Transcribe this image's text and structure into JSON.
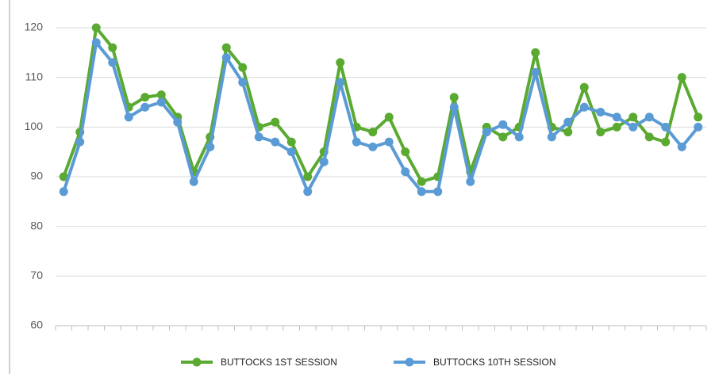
{
  "chart_data": {
    "type": "line",
    "categories": [
      null,
      null,
      null,
      null,
      null,
      null,
      null,
      null,
      null,
      null,
      null,
      null,
      null,
      null,
      null,
      null,
      null,
      null,
      null,
      null,
      null,
      null,
      null,
      null,
      null,
      null,
      null,
      null,
      null,
      null,
      null,
      null,
      null,
      null,
      null,
      null,
      null,
      null,
      null,
      null
    ],
    "series": [
      {
        "name": "BUTTOCKS 1ST SESSION",
        "color": "#5aaa32",
        "values": [
          90,
          99,
          120,
          116,
          104,
          106,
          106.5,
          102,
          91,
          98,
          116,
          112,
          100,
          101,
          97,
          90,
          95,
          113,
          100,
          99,
          102,
          95,
          89,
          90,
          106,
          91,
          100,
          98,
          100,
          115,
          100,
          99,
          108,
          99,
          100,
          102,
          98,
          97,
          110,
          102
        ]
      },
      {
        "name": "BUTTOCKS 10TH  SESSION",
        "color": "#5b9bd5",
        "values": [
          87,
          97,
          117,
          113,
          102,
          104,
          105,
          101,
          89,
          96,
          114,
          109,
          98,
          97,
          95,
          87,
          93,
          109,
          97,
          96,
          97,
          91,
          87,
          87,
          104,
          89,
          99,
          100.5,
          98,
          111,
          98,
          101,
          104,
          103,
          102,
          100,
          102,
          100,
          96,
          100
        ]
      }
    ],
    "ylim": [
      60,
      120
    ],
    "yticks": [
      60,
      70,
      80,
      90,
      100,
      110,
      120
    ],
    "grid": true,
    "legend": "bottom"
  }
}
